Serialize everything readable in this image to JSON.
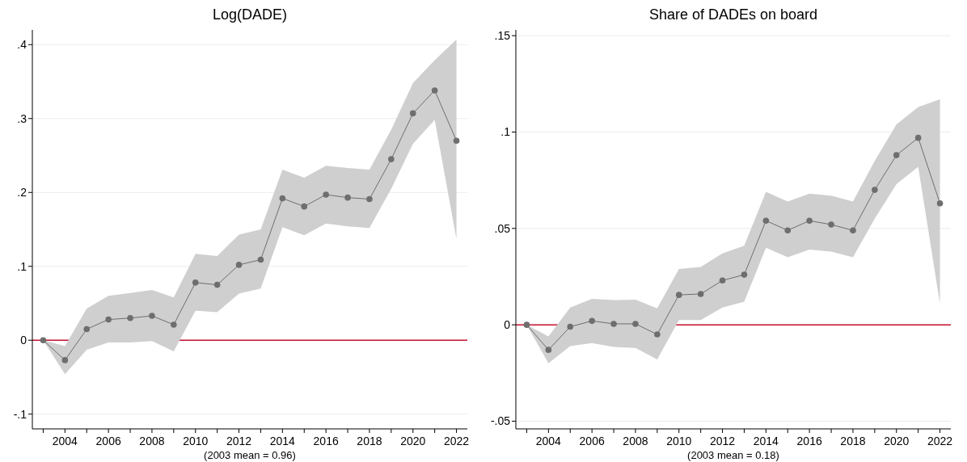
{
  "chart_data": [
    {
      "type": "line",
      "title": "Log(DADE)",
      "xlabel": "(2003 mean = 0.96)",
      "x": [
        2003,
        2004,
        2005,
        2006,
        2007,
        2008,
        2009,
        2010,
        2011,
        2012,
        2013,
        2014,
        2015,
        2016,
        2017,
        2018,
        2019,
        2020,
        2021,
        2022
      ],
      "series": [
        {
          "color": "#6e6e6e",
          "values": [
            0,
            -0.027,
            0.015,
            0.028,
            0.03,
            0.033,
            0.021,
            0.078,
            0.075,
            0.102,
            0.109,
            0.192,
            0.181,
            0.197,
            0.193,
            0.191,
            0.245,
            0.307,
            0.338,
            0.27
          ],
          "lower": [
            0,
            -0.046,
            -0.013,
            -0.003,
            -0.003,
            -0.001,
            -0.015,
            0.04,
            0.038,
            0.063,
            0.07,
            0.153,
            0.142,
            0.158,
            0.154,
            0.152,
            0.205,
            0.266,
            0.298,
            0.137
          ],
          "upper": [
            0,
            -0.008,
            0.043,
            0.06,
            0.064,
            0.068,
            0.058,
            0.117,
            0.114,
            0.143,
            0.15,
            0.231,
            0.22,
            0.236,
            0.233,
            0.231,
            0.285,
            0.348,
            0.379,
            0.407
          ]
        }
      ],
      "xlim": [
        2002.5,
        2022.5
      ],
      "ylim": [
        -0.12,
        0.42
      ],
      "xticks": [
        {
          "value": 2003,
          "label": null
        },
        2004,
        {
          "value": 2005,
          "label": null
        },
        2006,
        {
          "value": 2007,
          "label": null
        },
        2008,
        {
          "value": 2009,
          "label": null
        },
        2010,
        {
          "value": 2011,
          "label": null
        },
        2012,
        {
          "value": 2013,
          "label": null
        },
        2014,
        {
          "value": 2015,
          "label": null
        },
        2016,
        {
          "value": 2017,
          "label": null
        },
        2018,
        {
          "value": 2019,
          "label": null
        },
        2020,
        {
          "value": 2021,
          "label": null
        },
        2022
      ],
      "yticks": [
        {
          "value": -0.1,
          "label": "-.1"
        },
        0,
        {
          "value": 0.1,
          "label": ".1"
        },
        {
          "value": 0.2,
          "label": ".2"
        },
        {
          "value": 0.3,
          "label": ".3"
        },
        {
          "value": 0.4,
          "label": ".4"
        }
      ],
      "grid": "y",
      "marker": "circle",
      "line_style": "solid",
      "ref_lines": [
        {
          "axis": "y",
          "value": 0,
          "color": "#c8102e"
        }
      ]
    },
    {
      "type": "line",
      "title": "Share of DADEs on board",
      "xlabel": "(2003 mean = 0.18)",
      "x": [
        2003,
        2004,
        2005,
        2006,
        2007,
        2008,
        2009,
        2010,
        2011,
        2012,
        2013,
        2014,
        2015,
        2016,
        2017,
        2018,
        2019,
        2020,
        2021,
        2022
      ],
      "series": [
        {
          "color": "#6e6e6e",
          "values": [
            0,
            -0.013,
            -0.001,
            0.002,
            0.0005,
            0.0005,
            -0.005,
            0.0155,
            0.016,
            0.023,
            0.026,
            0.054,
            0.049,
            0.054,
            0.052,
            0.049,
            0.07,
            0.088,
            0.097,
            0.063
          ],
          "lower": [
            0,
            -0.02,
            -0.011,
            -0.0095,
            -0.0115,
            -0.012,
            -0.018,
            0.0025,
            0.0025,
            0.009,
            0.012,
            0.04,
            0.035,
            0.039,
            0.038,
            0.035,
            0.055,
            0.073,
            0.082,
            0.011
          ],
          "upper": [
            0,
            -0.006,
            0.009,
            0.0135,
            0.0128,
            0.013,
            0.0085,
            0.029,
            0.03,
            0.037,
            0.041,
            0.069,
            0.064,
            0.068,
            0.067,
            0.064,
            0.085,
            0.104,
            0.113,
            0.117
          ]
        }
      ],
      "xlim": [
        2002.5,
        2022.5
      ],
      "ylim": [
        -0.054,
        0.153
      ],
      "xticks": [
        {
          "value": 2003,
          "label": null
        },
        2004,
        {
          "value": 2005,
          "label": null
        },
        2006,
        {
          "value": 2007,
          "label": null
        },
        2008,
        {
          "value": 2009,
          "label": null
        },
        2010,
        {
          "value": 2011,
          "label": null
        },
        2012,
        {
          "value": 2013,
          "label": null
        },
        2014,
        {
          "value": 2015,
          "label": null
        },
        2016,
        {
          "value": 2017,
          "label": null
        },
        2018,
        {
          "value": 2019,
          "label": null
        },
        2020,
        {
          "value": 2021,
          "label": null
        },
        2022
      ],
      "yticks": [
        {
          "value": -0.05,
          "label": "-.05"
        },
        0,
        {
          "value": 0.05,
          "label": ".05"
        },
        {
          "value": 0.1,
          "label": ".1"
        },
        {
          "value": 0.15,
          "label": ".15"
        }
      ],
      "grid": "y",
      "marker": "circle",
      "line_style": "solid",
      "ref_lines": [
        {
          "axis": "y",
          "value": 0,
          "color": "#c8102e"
        }
      ]
    }
  ]
}
